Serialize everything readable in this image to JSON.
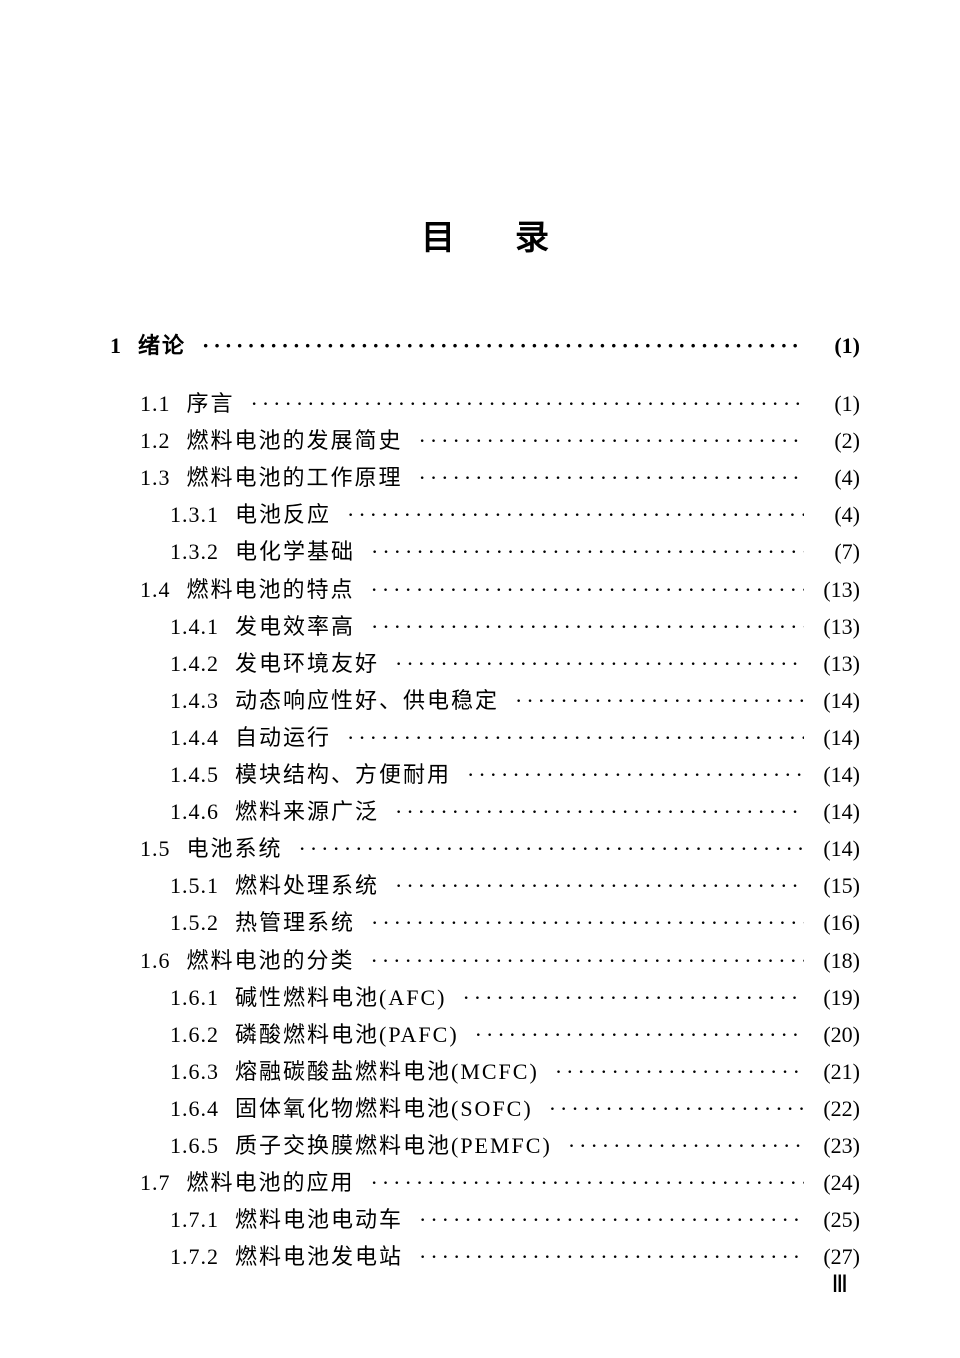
{
  "title": "目录",
  "page_number_footer": "Ⅲ",
  "dot_leader": "··············································································",
  "toc": [
    {
      "num": "1",
      "label": "绪论",
      "page": "(1)",
      "indent": 0,
      "bold": true
    },
    {
      "num": "1.1",
      "label": "序言",
      "page": "(1)",
      "indent": 1
    },
    {
      "num": "1.2",
      "label": "燃料电池的发展简史",
      "page": "(2)",
      "indent": 1
    },
    {
      "num": "1.3",
      "label": "燃料电池的工作原理",
      "page": "(4)",
      "indent": 1
    },
    {
      "num": "1.3.1",
      "label": "电池反应",
      "page": "(4)",
      "indent": 2,
      "italic": true
    },
    {
      "num": "1.3.2",
      "label": "电化学基础",
      "page": "(7)",
      "indent": 2,
      "italic": true
    },
    {
      "num": "1.4",
      "label": "燃料电池的特点",
      "page": "(13)",
      "indent": 1
    },
    {
      "num": "1.4.1",
      "label": "发电效率高",
      "page": "(13)",
      "indent": 2,
      "italic": true
    },
    {
      "num": "1.4.2",
      "label": "发电环境友好",
      "page": "(13)",
      "indent": 2,
      "italic": true
    },
    {
      "num": "1.4.3",
      "label": "动态响应性好、供电稳定",
      "page": "(14)",
      "indent": 2,
      "italic": true
    },
    {
      "num": "1.4.4",
      "label": "自动运行",
      "page": "(14)",
      "indent": 2,
      "italic": true
    },
    {
      "num": "1.4.5",
      "label": "模块结构、方便耐用",
      "page": "(14)",
      "indent": 2,
      "italic": true
    },
    {
      "num": "1.4.6",
      "label": "燃料来源广泛",
      "page": "(14)",
      "indent": 2,
      "italic": true
    },
    {
      "num": "1.5",
      "label": "电池系统",
      "page": "(14)",
      "indent": 1
    },
    {
      "num": "1.5.1",
      "label": "燃料处理系统",
      "page": "(15)",
      "indent": 2,
      "italic": true
    },
    {
      "num": "1.5.2",
      "label": "热管理系统",
      "page": "(16)",
      "indent": 2,
      "italic": true
    },
    {
      "num": "1.6",
      "label": "燃料电池的分类",
      "page": "(18)",
      "indent": 1
    },
    {
      "num": "1.6.1",
      "label": "碱性燃料电池(AFC)",
      "page": "(19)",
      "indent": 2,
      "italic": true
    },
    {
      "num": "1.6.2",
      "label": "磷酸燃料电池(PAFC)",
      "page": "(20)",
      "indent": 2,
      "italic": true
    },
    {
      "num": "1.6.3",
      "label": "熔融碳酸盐燃料电池(MCFC)",
      "page": "(21)",
      "indent": 2,
      "italic": true
    },
    {
      "num": "1.6.4",
      "label": "固体氧化物燃料电池(SOFC)",
      "page": "(22)",
      "indent": 2,
      "italic": true
    },
    {
      "num": "1.6.5",
      "label": "质子交换膜燃料电池(PEMFC)",
      "page": "(23)",
      "indent": 2,
      "italic": true
    },
    {
      "num": "1.7",
      "label": "燃料电池的应用",
      "page": "(24)",
      "indent": 1
    },
    {
      "num": "1.7.1",
      "label": "燃料电池电动车",
      "page": "(25)",
      "indent": 2,
      "italic": true
    },
    {
      "num": "1.7.2",
      "label": "燃料电池发电站",
      "page": "(27)",
      "indent": 2,
      "italic": true
    }
  ]
}
